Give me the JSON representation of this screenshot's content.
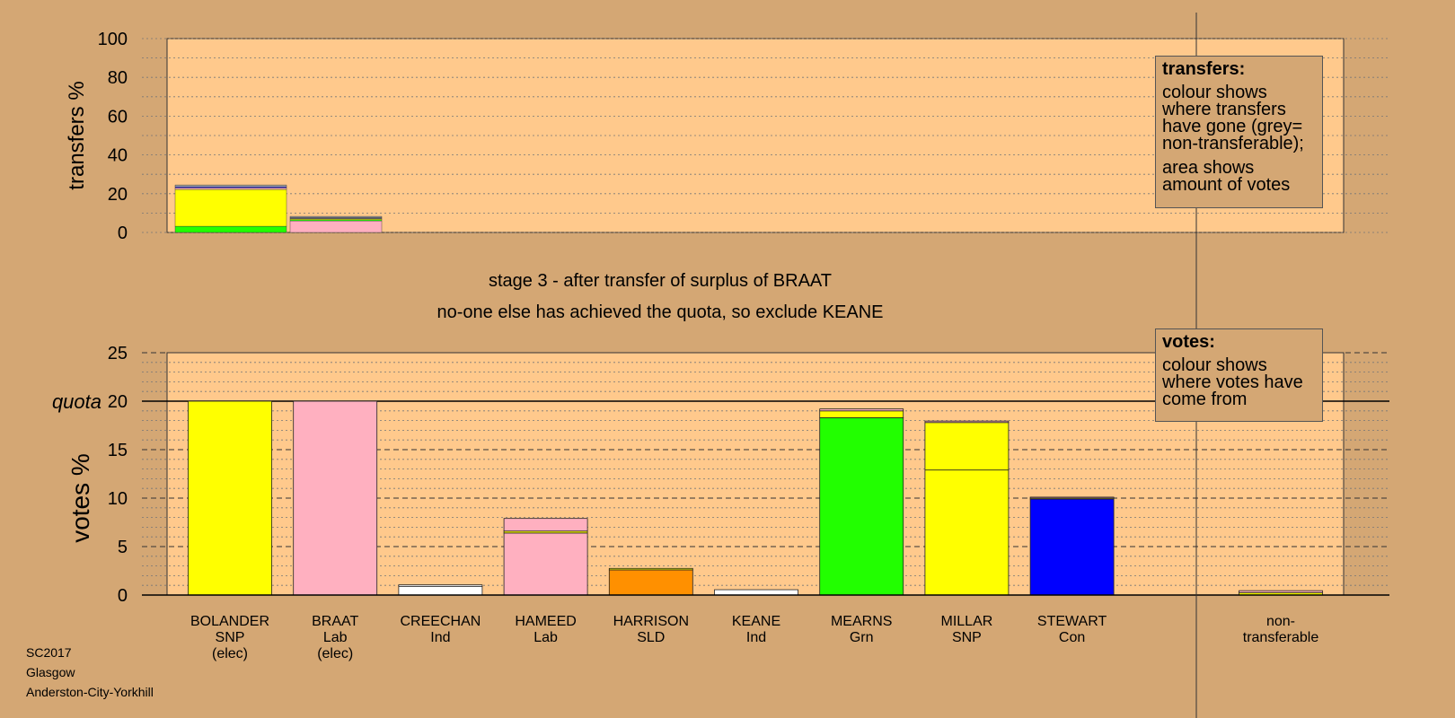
{
  "stage_text": "stage 3 - after transfer of surplus of BRAAT",
  "exclude_text": "no-one else has achieved the quota, so exclude KEANE",
  "quota_label": "quota",
  "legend_transfers": {
    "title": "transfers:",
    "p1": "colour shows where transfers have gone (grey= non-transferable);",
    "p2": "area shows amount of votes"
  },
  "legend_votes": {
    "title": "votes:",
    "p1": "colour shows where votes have come from"
  },
  "footer": {
    "line1": "SC2017",
    "line2": "Glasgow",
    "line3": "Anderston-City-Yorkhill"
  },
  "colors": {
    "background": "#d4a774",
    "plot": "#ffc98c",
    "SNP": "#ffff00",
    "Lab": "#ffb0c0",
    "Grn": "#22ff00",
    "Con": "#0000ff",
    "SLD": "#ff9000",
    "Ind": "#ffffff",
    "nontransferable": "#999999"
  },
  "chart_data": [
    {
      "type": "bar",
      "stacked": true,
      "ylabel": "transfers %",
      "ylim": [
        0,
        100
      ],
      "yticks": [
        0,
        20,
        40,
        60,
        80,
        100
      ],
      "grid": "dotted",
      "bars": [
        {
          "from": "BOLANDER",
          "segments": [
            {
              "to": "MEARNS",
              "value": 3.2,
              "color": "#22ff00"
            },
            {
              "to": "MILLAR",
              "value": 19.0,
              "color": "#ffff00"
            },
            {
              "to": "HAMEED",
              "value": 0.8,
              "color": "#ffb0c0"
            },
            {
              "to": "STEWART",
              "value": 0.5,
              "color": "#0000ff"
            },
            {
              "to": "CREECHAN",
              "value": 0.5,
              "color": "#ffffff"
            },
            {
              "to": "non-transferable",
              "value": 0.5,
              "color": "#999999"
            }
          ]
        },
        {
          "from": "BRAAT",
          "segments": [
            {
              "to": "HAMEED",
              "value": 6.0,
              "color": "#ffb0c0"
            },
            {
              "to": "MEARNS",
              "value": 0.6,
              "color": "#22ff00"
            },
            {
              "to": "MILLAR",
              "value": 0.6,
              "color": "#ffff00"
            },
            {
              "to": "STEWART",
              "value": 0.4,
              "color": "#0000ff"
            },
            {
              "to": "non-transferable",
              "value": 0.7,
              "color": "#999999"
            }
          ]
        }
      ]
    },
    {
      "type": "bar",
      "stacked": true,
      "ylabel": "votes %",
      "ylim": [
        0,
        25
      ],
      "yticks": [
        0,
        5,
        10,
        15,
        20,
        25
      ],
      "quota": 20,
      "grid": "dashed",
      "categories": [
        {
          "name": "BOLANDER",
          "party": "SNP",
          "note": "(elec)",
          "segments": [
            {
              "value": 20.0,
              "color": "#ffff00"
            }
          ]
        },
        {
          "name": "BRAAT",
          "party": "Lab",
          "note": "(elec)",
          "segments": [
            {
              "value": 20.0,
              "color": "#ffb0c0"
            }
          ]
        },
        {
          "name": "CREECHAN",
          "party": "Ind",
          "note": "",
          "segments": [
            {
              "value": 0.9,
              "color": "#ffffff"
            },
            {
              "value": 0.15,
              "color": "#ffffff"
            }
          ]
        },
        {
          "name": "HAMEED",
          "party": "Lab",
          "note": "",
          "segments": [
            {
              "value": 6.4,
              "color": "#ffb0c0"
            },
            {
              "value": 0.2,
              "color": "#ffff00"
            },
            {
              "value": 1.3,
              "color": "#ffb0c0"
            }
          ]
        },
        {
          "name": "HARRISON",
          "party": "SLD",
          "note": "",
          "segments": [
            {
              "value": 2.6,
              "color": "#ff9000"
            },
            {
              "value": 0.15,
              "color": "#ffff00"
            }
          ]
        },
        {
          "name": "KEANE",
          "party": "Ind",
          "note": "",
          "segments": [
            {
              "value": 0.55,
              "color": "#ffffff"
            }
          ]
        },
        {
          "name": "MEARNS",
          "party": "Grn",
          "note": "",
          "segments": [
            {
              "value": 18.3,
              "color": "#22ff00"
            },
            {
              "value": 0.7,
              "color": "#ffff00"
            },
            {
              "value": 0.2,
              "color": "#ffb0c0"
            }
          ]
        },
        {
          "name": "MILLAR",
          "party": "SNP",
          "note": "",
          "segments": [
            {
              "value": 12.9,
              "color": "#ffff00"
            },
            {
              "value": 4.9,
              "color": "#ffff00"
            },
            {
              "value": 0.15,
              "color": "#ffb0c0"
            }
          ]
        },
        {
          "name": "STEWART",
          "party": "Con",
          "note": "",
          "segments": [
            {
              "value": 9.9,
              "color": "#0000ff"
            },
            {
              "value": 0.1,
              "color": "#ffff00"
            },
            {
              "value": 0.1,
              "color": "#ffb0c0"
            }
          ]
        }
      ],
      "nontransferable": {
        "name": "non-",
        "name2": "transferable",
        "segments": [
          {
            "value": 0.25,
            "color": "#ffff00"
          },
          {
            "value": 0.2,
            "color": "#ffb0c0"
          }
        ]
      }
    }
  ]
}
